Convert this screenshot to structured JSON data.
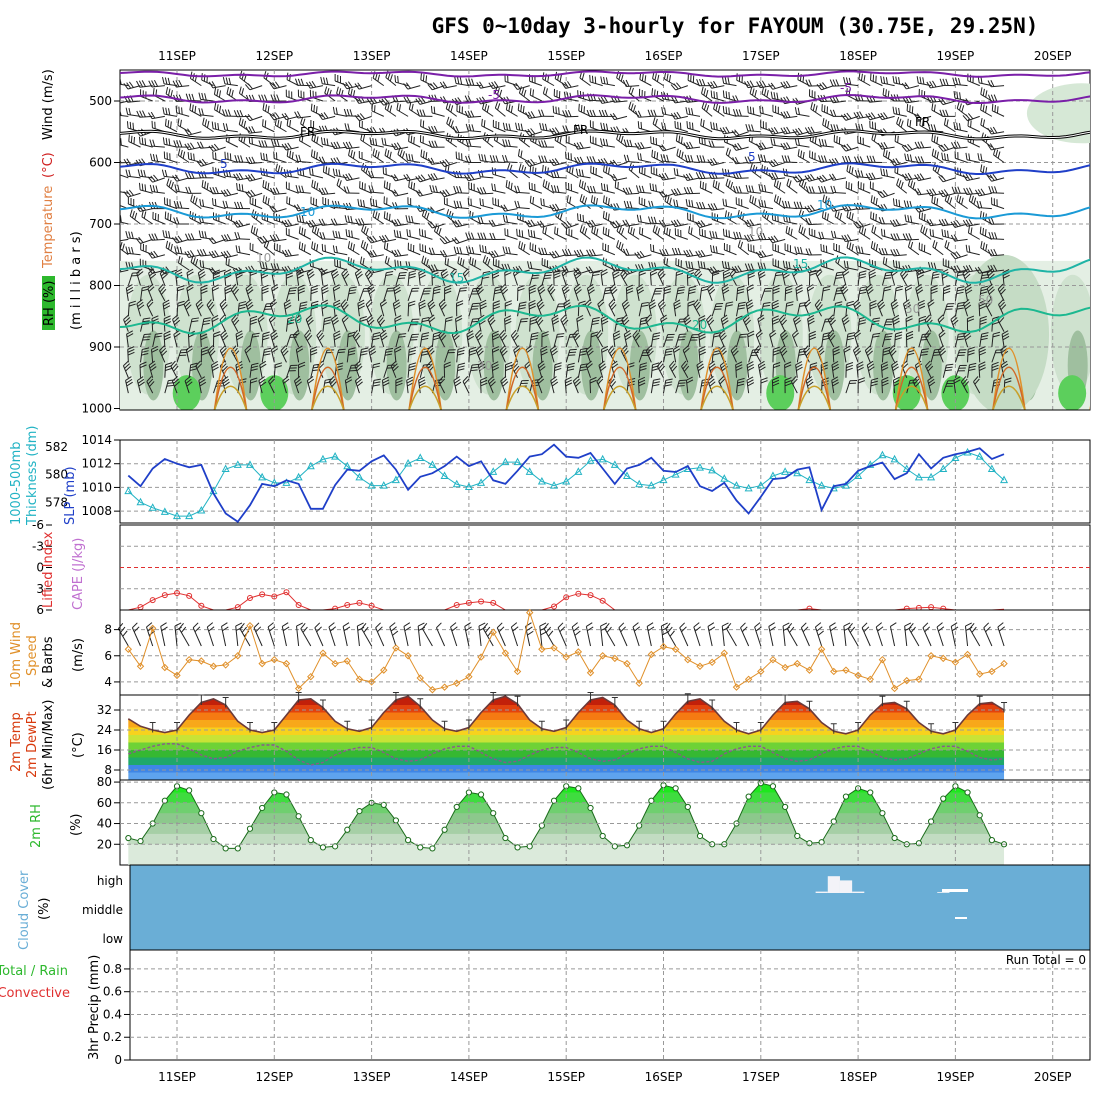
{
  "title": "GFS 0~10day 3-hourly for FAYOUM (30.75E, 29.25N)",
  "dates": [
    "11SEP",
    "12SEP",
    "13SEP",
    "14SEP",
    "15SEP",
    "16SEP",
    "17SEP",
    "18SEP",
    "19SEP",
    "20SEP"
  ],
  "colors": {
    "grid": "#999999",
    "slp": "#1f3fc8",
    "thickness": "#22b3c4",
    "lifted_index": "#e03030",
    "wind": "#e0902a",
    "cloud": "#6aaed6",
    "rh_green": "#2db82d",
    "temp_hot": "#d83a0e",
    "temp_cool": "#3f86e6"
  },
  "panels": {
    "upper": {
      "ylabel_rh": "RH (%)",
      "ylabel_temp": "Temperature",
      "ylabel_temp_unit": "(°C)",
      "ylabel_wind": "Wind (m/s)",
      "ylabel_mb": "(m i l l i b a r s)",
      "yticks": [
        "500",
        "600",
        "700",
        "800",
        "900",
        "1000"
      ],
      "contour_labels": {
        "minus5": "-5",
        "fr": "FR",
        "plus5": "5",
        "t10": "10",
        "t15": "15",
        "t20": "20",
        "rh10": "10",
        "rh30": "30",
        "rh50": "50"
      }
    },
    "slp": {
      "ylabel_thk": "1000-500mb",
      "ylabel_thk2": "Thickness (dm)",
      "ylabel_slp": "SLP (mb)",
      "yticks_right": [
        "1014",
        "1012",
        "1010",
        "1008"
      ],
      "yticks_left": [
        "582",
        "580",
        "578"
      ]
    },
    "cape": {
      "ylabel_li": "Lifted Index",
      "ylabel_cape": "CAPE (J/kg)",
      "yticks": [
        "-6",
        "-3",
        "0",
        "3",
        "6"
      ]
    },
    "wind": {
      "ylabel1": "10m Wind",
      "ylabel2": "Speed",
      "ylabel3": "& Barbs",
      "ylabel_unit": "(m/s)",
      "yticks": [
        "8",
        "6",
        "4"
      ]
    },
    "temp": {
      "ylabel1": "2m Temp",
      "ylabel2": "2m DewPt",
      "ylabel3": "(6hr Min/Max)",
      "ylabel_unit": "(°C)",
      "yticks": [
        "32",
        "24",
        "16",
        "8"
      ]
    },
    "rh": {
      "ylabel": "2m RH",
      "ylabel_unit": "(%)",
      "yticks": [
        "80",
        "60",
        "40",
        "20"
      ]
    },
    "cloud": {
      "ylabel1": "Cloud Cover",
      "ylabel_unit": "(%)",
      "levels": [
        "high",
        "middle",
        "low"
      ]
    },
    "precip": {
      "ylabel1": "Total / Rain",
      "ylabel2": "Convective",
      "ylabel3": "3hr Precip (mm)",
      "run_total": "Run Total = 0",
      "yticks": [
        "0.8",
        "0.6",
        "0.4",
        "0.2",
        "0"
      ]
    }
  },
  "chart_data": [
    {
      "type": "line",
      "title": "SLP / 1000-500mb Thickness",
      "x_unit": "days from 10SEP 12Z (3-hourly)",
      "series": [
        {
          "name": "SLP (mb)",
          "ylim": [
            1007,
            1014
          ],
          "values": [
            1011.0,
            1010.1,
            1011.6,
            1012.4,
            1012.0,
            1011.7,
            1011.9,
            1009.5,
            1007.8,
            1007.1,
            1008.5,
            1010.3,
            1010.1,
            1010.6,
            1010.3,
            1008.2,
            1008.2,
            1010.2,
            1011.5,
            1011.4,
            1012.2,
            1012.7,
            1011.5,
            1009.8,
            1010.9,
            1011.2,
            1011.8,
            1012.6,
            1011.8,
            1012.2,
            1010.6,
            1010.3,
            1011.4,
            1012.6,
            1012.8,
            1013.6,
            1012.6,
            1012.5,
            1012.9,
            1011.6,
            1010.3,
            1011.6,
            1011.9,
            1012.5,
            1011.4,
            1011.3,
            1011.8,
            1010.1,
            1009.7,
            1010.4,
            1008.9,
            1007.8,
            1009.2,
            1010.7,
            1010.8,
            1011.5,
            1011.7,
            1008.1,
            1010.1,
            1010.3,
            1011.4,
            1011.8,
            1012.1,
            1010.7,
            1011.2,
            1012.8,
            1011.6,
            1012.5,
            1012.8,
            1013.0,
            1013.3,
            1012.4,
            1012.8
          ]
        },
        {
          "name": "Thickness (dm)",
          "ylim": [
            576.5,
            582.5
          ],
          "values": [
            578.8,
            578.0,
            577.6,
            577.3,
            577.0,
            577.0,
            577.4,
            578.8,
            580.4,
            580.7,
            580.7,
            579.8,
            579.4,
            579.4,
            579.8,
            580.6,
            581.1,
            581.3,
            580.6,
            579.8,
            579.2,
            579.2,
            579.6,
            580.8,
            581.2,
            580.7,
            579.9,
            579.3,
            579.1,
            579.4,
            580.2,
            580.9,
            580.9,
            580.2,
            579.5,
            579.2,
            579.5,
            580.2,
            581.0,
            581.1,
            580.7,
            579.9,
            579.3,
            579.2,
            579.6,
            580.0,
            580.4,
            580.5,
            580.3,
            579.7,
            579.2,
            579.0,
            579.2,
            579.9,
            580.2,
            580.1,
            579.6,
            579.2,
            579.0,
            579.2,
            579.9,
            580.7,
            581.4,
            581.1,
            580.4,
            579.8,
            579.8,
            580.4,
            581.2,
            581.6,
            581.3,
            580.4,
            579.6
          ]
        }
      ]
    },
    {
      "type": "line",
      "title": "Lifted Index / CAPE",
      "ylim": [
        6,
        -6
      ],
      "values": [
        6,
        5.6,
        4.6,
        3.9,
        3.6,
        4.0,
        5.4,
        6,
        6,
        5.6,
        4.3,
        3.8,
        4.1,
        3.5,
        5.3,
        6,
        6,
        5.8,
        5.3,
        5.0,
        5.4,
        6,
        6,
        6,
        6,
        6,
        6,
        5.3,
        5.0,
        4.8,
        5.0,
        6,
        6,
        6,
        6,
        5.5,
        4.2,
        3.7,
        3.9,
        4.7,
        6,
        6,
        6,
        6,
        6,
        6,
        6,
        6,
        6,
        6,
        6,
        6,
        6,
        6,
        6,
        6,
        5.8,
        6,
        6,
        6,
        6,
        6,
        6,
        6,
        5.8,
        5.7,
        5.6,
        5.8,
        6,
        6,
        6,
        6,
        5.9
      ]
    },
    {
      "type": "line",
      "title": "10m Wind Speed",
      "ylim": [
        3,
        9.5
      ],
      "values": [
        6.5,
        5.2,
        8.1,
        5.1,
        4.5,
        5.7,
        5.6,
        5.2,
        5.3,
        6.0,
        8.3,
        5.4,
        5.7,
        5.4,
        3.5,
        4.4,
        6.2,
        5.4,
        5.6,
        4.2,
        4.0,
        4.9,
        6.6,
        6.0,
        4.3,
        3.4,
        3.6,
        3.9,
        4.4,
        5.9,
        7.8,
        6.2,
        4.8,
        9.3,
        6.5,
        6.6,
        5.9,
        6.3,
        4.7,
        6.0,
        5.8,
        5.4,
        3.9,
        6.1,
        6.7,
        6.5,
        5.7,
        5.2,
        5.5,
        6.2,
        3.6,
        4.2,
        4.8,
        5.7,
        5.1,
        5.4,
        4.9,
        6.5,
        4.8,
        4.9,
        4.5,
        4.2,
        5.7,
        3.5,
        4.1,
        4.2,
        6.0,
        5.8,
        5.5,
        6.1,
        4.6,
        4.8,
        5.4
      ]
    },
    {
      "type": "area",
      "title": "2m Temp / DewPt",
      "ylim": [
        4,
        38
      ],
      "temp": [
        28.5,
        25.5,
        24.0,
        23.0,
        24.0,
        30.0,
        35.0,
        36.5,
        34.0,
        27.5,
        24.0,
        23.0,
        24.0,
        30.0,
        36.0,
        36.5,
        33.0,
        27.5,
        24.5,
        23.5,
        25.0,
        31.0,
        36.0,
        37.5,
        33.5,
        28.0,
        24.5,
        23.5,
        25.0,
        31.0,
        36.0,
        37.5,
        34.5,
        28.0,
        24.5,
        23.5,
        25.0,
        31.0,
        36.0,
        37.0,
        34.0,
        28.0,
        24.5,
        23.0,
        24.5,
        30.5,
        35.5,
        36.5,
        33.0,
        27.5,
        24.0,
        22.5,
        24.0,
        30.0,
        35.0,
        35.5,
        32.5,
        27.0,
        23.5,
        22.5,
        24.0,
        30.0,
        34.5,
        35.0,
        32.5,
        27.0,
        23.5,
        22.5,
        24.0,
        30.0,
        34.5,
        35.0,
        32.0
      ],
      "dewpt": [
        14.5,
        16.0,
        17.5,
        18.5,
        18.5,
        16.5,
        14.0,
        12.5,
        13.0,
        15.5,
        17.0,
        18.0,
        18.0,
        15.5,
        12.0,
        10.0,
        11.0,
        14.0,
        16.0,
        17.0,
        17.0,
        15.0,
        12.5,
        11.5,
        12.0,
        14.5,
        16.5,
        17.5,
        17.5,
        15.0,
        12.5,
        11.0,
        11.5,
        14.0,
        16.0,
        17.0,
        17.0,
        15.0,
        12.5,
        11.5,
        12.0,
        14.5,
        16.5,
        17.5,
        17.5,
        15.0,
        12.5,
        11.0,
        11.5,
        14.5,
        16.5,
        17.5,
        17.5,
        15.0,
        12.5,
        11.5,
        12.0,
        14.5,
        16.5,
        17.5,
        17.5,
        15.5,
        13.0,
        12.0,
        12.5,
        14.5,
        16.5,
        17.5,
        17.5,
        15.5,
        13.0,
        12.0,
        12.5
      ]
    },
    {
      "type": "area",
      "title": "2m RH",
      "ylim": [
        0,
        82
      ],
      "values": [
        26,
        23,
        40,
        62,
        76,
        72,
        50,
        25,
        16,
        16,
        35,
        55,
        70,
        68,
        47,
        24,
        17,
        18,
        34,
        52,
        60,
        58,
        43,
        24,
        17,
        16,
        34,
        56,
        70,
        68,
        50,
        26,
        17,
        18,
        38,
        62,
        76,
        74,
        55,
        28,
        18,
        19,
        38,
        62,
        77,
        74,
        56,
        28,
        20,
        20,
        40,
        66,
        79,
        76,
        56,
        28,
        21,
        22,
        42,
        66,
        74,
        70,
        50,
        26,
        20,
        21,
        42,
        64,
        76,
        70,
        48,
        24,
        20
      ]
    },
    {
      "type": "bar",
      "title": "Cloud Cover (high)",
      "ylim": [
        0,
        100
      ],
      "values": [
        0,
        0,
        0,
        0,
        0,
        0,
        0,
        0,
        0,
        0,
        0,
        0,
        0,
        0,
        0,
        0,
        0,
        0,
        0,
        0,
        0,
        0,
        0,
        0,
        0,
        0,
        0,
        0,
        0,
        0,
        0,
        0,
        0,
        0,
        0,
        0,
        0,
        0,
        0,
        0,
        0,
        0,
        0,
        0,
        0,
        0,
        0,
        0,
        0,
        0,
        0,
        0,
        0,
        0,
        0,
        0,
        0,
        5,
        60,
        45,
        5,
        0,
        0,
        0,
        0,
        0,
        0,
        3,
        0,
        0,
        0,
        0,
        0
      ]
    },
    {
      "type": "bar",
      "title": "3hr Precip (mm)",
      "ylim": [
        0,
        1
      ],
      "values": [
        0,
        0,
        0,
        0,
        0,
        0,
        0,
        0,
        0,
        0,
        0,
        0,
        0,
        0,
        0,
        0,
        0,
        0,
        0,
        0,
        0,
        0,
        0,
        0,
        0,
        0,
        0,
        0,
        0,
        0,
        0,
        0,
        0,
        0,
        0,
        0,
        0,
        0,
        0,
        0,
        0,
        0,
        0,
        0,
        0,
        0,
        0,
        0,
        0,
        0,
        0,
        0,
        0,
        0,
        0,
        0,
        0,
        0,
        0,
        0,
        0,
        0,
        0,
        0,
        0,
        0,
        0,
        0,
        0,
        0,
        0,
        0,
        0
      ]
    }
  ]
}
